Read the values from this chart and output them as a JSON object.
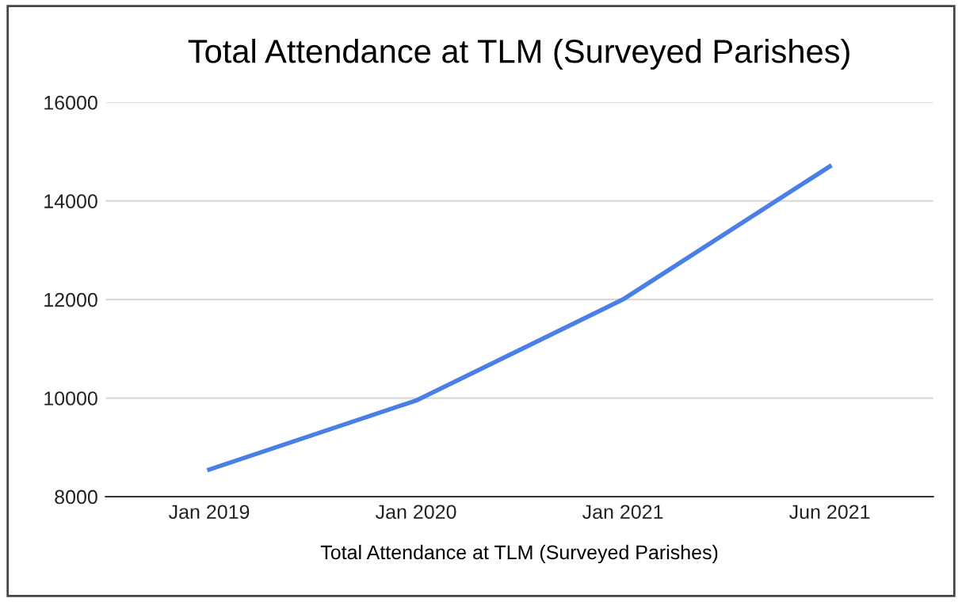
{
  "chart_data": {
    "type": "line",
    "title": "Total Attendance at TLM (Surveyed Parishes)",
    "xlabel": "Total Attendance at TLM (Surveyed Parishes)",
    "categories": [
      "Jan 2019",
      "Jan 2020",
      "Jan 2021",
      "Jun 2021"
    ],
    "series": [
      {
        "color": "#4a7fe8",
        "values": [
          8550,
          9950,
          12000,
          14700
        ]
      }
    ],
    "ylim": [
      8000,
      16000
    ],
    "yticks": [
      8000,
      10000,
      12000,
      14000,
      16000
    ],
    "grid": "y",
    "legend": false,
    "marker": "none",
    "line_style": "solid"
  }
}
